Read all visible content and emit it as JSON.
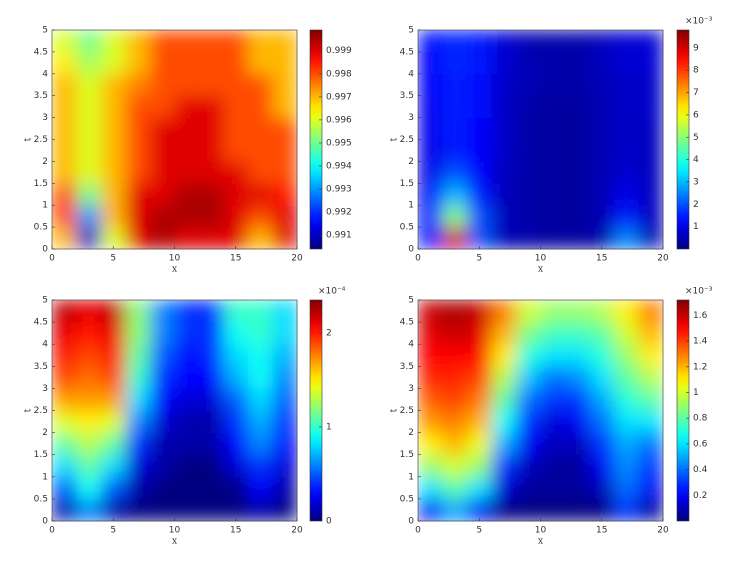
{
  "chart_data": [
    {
      "type": "heatmap",
      "xlabel": "x",
      "ylabel": "t",
      "x": [
        1,
        3,
        5,
        7,
        9,
        11,
        13,
        15,
        17,
        19
      ],
      "y": [
        0.25,
        0.75,
        1.25,
        1.75,
        2.25,
        2.75,
        3.25,
        3.75,
        4.25,
        4.75
      ],
      "z": [
        [
          0.997,
          0.991,
          0.996,
          0.999,
          0.9995,
          0.999,
          0.999,
          0.999,
          0.997,
          0.999
        ],
        [
          0.998,
          0.993,
          0.997,
          0.999,
          0.9995,
          0.9995,
          0.9995,
          0.999,
          0.998,
          0.999
        ],
        [
          0.998,
          0.995,
          0.997,
          0.999,
          0.999,
          0.9995,
          0.9995,
          0.999,
          0.999,
          0.9985
        ],
        [
          0.997,
          0.996,
          0.997,
          0.998,
          0.999,
          0.999,
          0.999,
          0.999,
          0.998,
          0.998
        ],
        [
          0.997,
          0.996,
          0.997,
          0.998,
          0.999,
          0.999,
          0.999,
          0.998,
          0.998,
          0.998
        ],
        [
          0.997,
          0.996,
          0.997,
          0.998,
          0.999,
          0.999,
          0.999,
          0.998,
          0.998,
          0.998
        ],
        [
          0.997,
          0.996,
          0.997,
          0.998,
          0.998,
          0.999,
          0.999,
          0.998,
          0.998,
          0.997
        ],
        [
          0.997,
          0.996,
          0.997,
          0.9975,
          0.998,
          0.998,
          0.998,
          0.998,
          0.998,
          0.997
        ],
        [
          0.9965,
          0.9955,
          0.996,
          0.997,
          0.998,
          0.998,
          0.998,
          0.998,
          0.997,
          0.997
        ],
        [
          0.996,
          0.995,
          0.996,
          0.997,
          0.998,
          0.998,
          0.998,
          0.998,
          0.997,
          0.997
        ]
      ],
      "xlim": [
        0,
        20
      ],
      "ylim": [
        0,
        5
      ],
      "xticks": [
        0,
        5,
        10,
        15,
        20
      ],
      "yticks": [
        0,
        0.5,
        1,
        1.5,
        2,
        2.5,
        3,
        3.5,
        4,
        4.5,
        5
      ],
      "clim": [
        0.9904,
        0.9999
      ],
      "cticks": [
        0.991,
        0.992,
        0.993,
        0.994,
        0.995,
        0.996,
        0.997,
        0.998,
        0.999
      ]
    },
    {
      "type": "heatmap",
      "xlabel": "x",
      "ylabel": "t",
      "x": [
        1,
        3,
        5,
        7,
        9,
        11,
        13,
        15,
        17,
        19
      ],
      "y": [
        0.25,
        0.75,
        1.25,
        1.75,
        2.25,
        2.75,
        3.25,
        3.75,
        4.25,
        4.75
      ],
      "z": [
        [
          1.5,
          9,
          2,
          0.5,
          0.4,
          0.3,
          0.3,
          0.4,
          2.5,
          0.5
        ],
        [
          1.5,
          5,
          2,
          0.6,
          0.4,
          0.3,
          0.3,
          0.5,
          1.5,
          0.6
        ],
        [
          1.2,
          3,
          1.5,
          0.6,
          0.4,
          0.3,
          0.3,
          0.5,
          1,
          0.6
        ],
        [
          1,
          2,
          1.2,
          0.6,
          0.4,
          0.3,
          0.3,
          0.5,
          0.8,
          0.6
        ],
        [
          1,
          1.5,
          1.2,
          0.7,
          0.4,
          0.3,
          0.3,
          0.5,
          0.7,
          0.6
        ],
        [
          1.1,
          1.5,
          1.2,
          0.7,
          0.4,
          0.3,
          0.3,
          0.5,
          0.7,
          0.6
        ],
        [
          1.1,
          1.5,
          1.3,
          0.7,
          0.4,
          0.3,
          0.3,
          0.5,
          0.7,
          0.7
        ],
        [
          1.2,
          1.5,
          1.3,
          0.7,
          0.5,
          0.4,
          0.4,
          0.5,
          0.7,
          0.7
        ],
        [
          1.2,
          1.6,
          1.4,
          0.8,
          0.5,
          0.4,
          0.4,
          0.6,
          0.8,
          0.8
        ],
        [
          1.3,
          1.6,
          1.4,
          0.8,
          0.5,
          0.4,
          0.4,
          0.6,
          0.8,
          0.8
        ]
      ],
      "xlim": [
        0,
        20
      ],
      "ylim": [
        0,
        5
      ],
      "xticks": [
        0,
        5,
        10,
        15,
        20
      ],
      "yticks": [
        0,
        0.5,
        1,
        1.5,
        2,
        2.5,
        3,
        3.5,
        4,
        4.5,
        5
      ],
      "clim": [
        0,
        9.8
      ],
      "cticks": [
        1,
        2,
        3,
        4,
        5,
        6,
        7,
        8,
        9
      ],
      "colorbar_exponent": "×10⁻³"
    },
    {
      "type": "heatmap",
      "xlabel": "x",
      "ylabel": "t",
      "x": [
        1,
        3,
        5,
        7,
        9,
        11,
        13,
        15,
        17,
        19
      ],
      "y": [
        0.25,
        0.75,
        1.25,
        1.75,
        2.25,
        2.75,
        3.25,
        3.75,
        4.25,
        4.75
      ],
      "z": [
        [
          0.1,
          0.6,
          0.1,
          0,
          0,
          0,
          0,
          0,
          0.1,
          0
        ],
        [
          0.5,
          0.9,
          0.5,
          0.1,
          0,
          0,
          0,
          0,
          0.3,
          0.1
        ],
        [
          0.8,
          1.1,
          0.8,
          0.2,
          0.1,
          0,
          0,
          0.2,
          0.4,
          0.2
        ],
        [
          1.1,
          1.3,
          1.1,
          0.4,
          0.1,
          0.1,
          0.1,
          0.3,
          0.6,
          0.3
        ],
        [
          1.4,
          1.5,
          1.4,
          0.6,
          0.2,
          0.1,
          0.1,
          0.4,
          0.7,
          0.4
        ],
        [
          1.7,
          1.7,
          1.7,
          0.8,
          0.3,
          0.2,
          0.2,
          0.5,
          0.8,
          0.5
        ],
        [
          1.9,
          1.8,
          1.9,
          1.0,
          0.4,
          0.3,
          0.3,
          0.7,
          0.9,
          0.6
        ],
        [
          2.0,
          1.9,
          2.0,
          1.1,
          0.5,
          0.3,
          0.4,
          0.8,
          0.9,
          0.7
        ],
        [
          2.1,
          2.0,
          2.1,
          1.2,
          0.6,
          0.4,
          0.4,
          0.9,
          1.0,
          0.8
        ],
        [
          2.2,
          2.1,
          2.2,
          1.2,
          0.6,
          0.4,
          0.4,
          1.0,
          1.0,
          0.8
        ]
      ],
      "xlim": [
        0,
        20
      ],
      "ylim": [
        0,
        5
      ],
      "xticks": [
        0,
        5,
        10,
        15,
        20
      ],
      "yticks": [
        0,
        0.5,
        1,
        1.5,
        2,
        2.5,
        3,
        3.5,
        4,
        4.5,
        5
      ],
      "clim": [
        0,
        2.35
      ],
      "cticks": [
        0,
        1,
        2
      ],
      "colorbar_exponent": "×10⁻⁴"
    },
    {
      "type": "heatmap",
      "xlabel": "x",
      "ylabel": "t",
      "x": [
        1,
        3,
        5,
        7,
        9,
        11,
        13,
        15,
        17,
        19
      ],
      "y": [
        0.25,
        0.75,
        1.25,
        1.75,
        2.25,
        2.75,
        3.25,
        3.75,
        4.25,
        4.75
      ],
      "z": [
        [
          0.2,
          0.5,
          0.2,
          0,
          0,
          0,
          0,
          0,
          0.3,
          0.05
        ],
        [
          0.6,
          0.8,
          0.6,
          0.15,
          0.05,
          0.05,
          0.05,
          0.1,
          0.4,
          0.2
        ],
        [
          0.9,
          1.0,
          0.9,
          0.3,
          0.1,
          0.05,
          0.05,
          0.2,
          0.45,
          0.3
        ],
        [
          1.1,
          1.2,
          1.05,
          0.5,
          0.2,
          0.1,
          0.1,
          0.3,
          0.5,
          0.4
        ],
        [
          1.25,
          1.3,
          1.2,
          0.65,
          0.3,
          0.15,
          0.2,
          0.4,
          0.6,
          0.6
        ],
        [
          1.35,
          1.4,
          1.3,
          0.8,
          0.4,
          0.3,
          0.3,
          0.5,
          0.7,
          0.8
        ],
        [
          1.45,
          1.45,
          1.4,
          0.95,
          0.55,
          0.4,
          0.45,
          0.6,
          0.8,
          0.95
        ],
        [
          1.5,
          1.5,
          1.5,
          1.1,
          0.7,
          0.6,
          0.6,
          0.7,
          0.9,
          1.1
        ],
        [
          1.55,
          1.6,
          1.55,
          1.2,
          0.85,
          0.75,
          0.75,
          0.8,
          1.0,
          1.2
        ],
        [
          1.6,
          1.65,
          1.6,
          1.3,
          1.0,
          0.9,
          0.9,
          0.95,
          1.1,
          1.3
        ]
      ],
      "xlim": [
        0,
        20
      ],
      "ylim": [
        0,
        5
      ],
      "xticks": [
        0,
        5,
        10,
        15,
        20
      ],
      "yticks": [
        0,
        0.5,
        1,
        1.5,
        2,
        2.5,
        3,
        3.5,
        4,
        4.5,
        5
      ],
      "clim": [
        0,
        1.72
      ],
      "cticks": [
        0.2,
        0.4,
        0.6,
        0.8,
        1,
        1.2,
        1.4,
        1.6
      ],
      "colorbar_exponent": "×10⁻³"
    }
  ]
}
